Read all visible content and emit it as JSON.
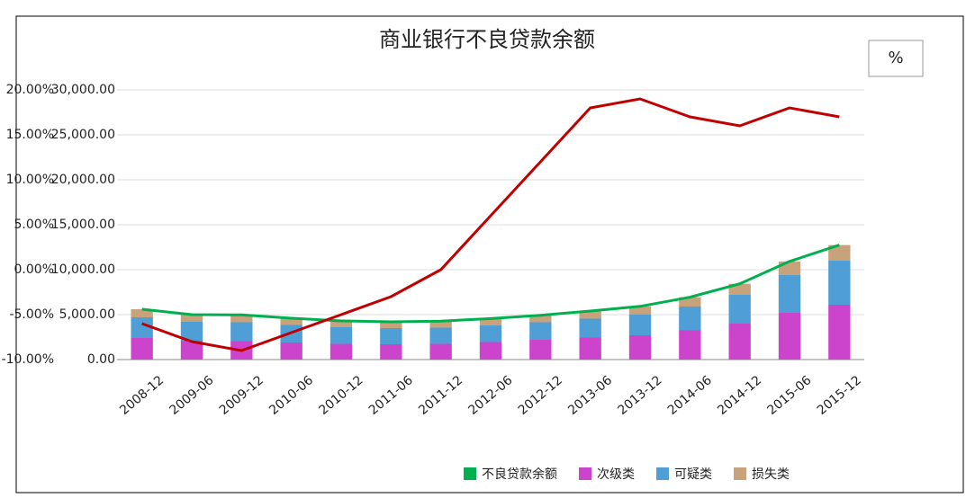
{
  "chart_data": {
    "type": "combo",
    "title": "商业银行不良贷款余额",
    "unit_label": "%",
    "categories": [
      "2008-12",
      "2009-06",
      "2009-12",
      "2010-06",
      "2010-12",
      "2011-06",
      "2011-12",
      "2012-06",
      "2012-12",
      "2013-06",
      "2013-12",
      "2014-06",
      "2014-12",
      "2015-06",
      "2015-12"
    ],
    "series": [
      {
        "name": "不良贷款余额",
        "color": "#00b050",
        "type": "line",
        "axis": "y2",
        "values": [
          5600,
          5000,
          4970,
          4600,
          4300,
          4200,
          4280,
          4560,
          4930,
          5400,
          5920,
          6940,
          8430,
          10920,
          12740
        ]
      },
      {
        "name": "次级类",
        "color": "#cc44cc",
        "type": "bar",
        "axis": "y2",
        "values": [
          2400,
          2100,
          2050,
          1900,
          1750,
          1700,
          1750,
          1950,
          2200,
          2450,
          2700,
          3250,
          4000,
          5200,
          6100
        ]
      },
      {
        "name": "可疑类",
        "color": "#4f9fd6",
        "type": "bar",
        "axis": "y2",
        "values": [
          2300,
          2100,
          2100,
          1950,
          1850,
          1800,
          1800,
          1850,
          1950,
          2100,
          2300,
          2650,
          3200,
          4200,
          4900
        ]
      },
      {
        "name": "损失类",
        "color": "#c8a27a",
        "type": "bar",
        "axis": "y2",
        "values": [
          900,
          800,
          820,
          750,
          700,
          700,
          730,
          760,
          780,
          850,
          920,
          1040,
          1230,
          1520,
          1740
        ]
      },
      {
        "color": "#c00000",
        "type": "line",
        "values": [
          -6,
          -8,
          -9,
          -7,
          -5,
          -3,
          0,
          6,
          12,
          18,
          19,
          17,
          16,
          18,
          17
        ]
      }
    ],
    "ylim": [
      -10,
      20
    ],
    "yticks": [
      {
        "value": -10,
        "label": "-10.00%"
      },
      {
        "value": -5,
        "label": "-5.00%"
      },
      {
        "value": 0,
        "label": "0.00%"
      },
      {
        "value": 5,
        "label": "5.00%"
      },
      {
        "value": 10,
        "label": "10.00%"
      },
      {
        "value": 15,
        "label": "15.00%"
      },
      {
        "value": 20,
        "label": "20.00%"
      }
    ],
    "y2lim": [
      0,
      30000
    ],
    "y2ticks": [
      {
        "value": 0,
        "label": "0.00"
      },
      {
        "value": 5000,
        "label": "5,000.00"
      },
      {
        "value": 10000,
        "label": "10,000.00"
      },
      {
        "value": 15000,
        "label": "15,000.00"
      },
      {
        "value": 20000,
        "label": "20,000.00"
      },
      {
        "value": 25000,
        "label": "25,000.00"
      },
      {
        "value": 30000,
        "label": "30,000.00"
      }
    ],
    "grid": true
  }
}
